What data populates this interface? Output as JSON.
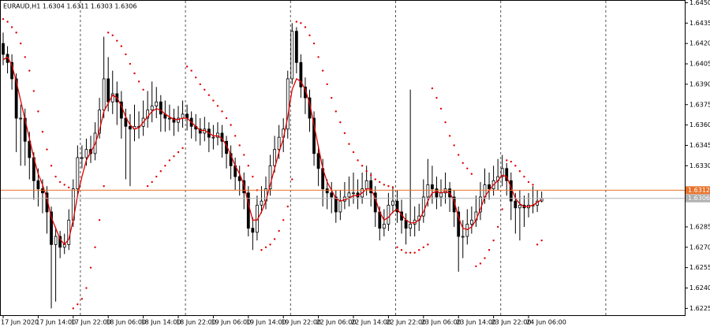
{
  "chart_data": {
    "type": "candlestick",
    "title": "EURAUD,H1  1.6304 1.6311 1.6303 1.6306",
    "ylim": [
      1.622,
      1.6452
    ],
    "yticks": [
      {
        "value": 1.645,
        "label": "1.6450"
      },
      {
        "value": 1.6435,
        "label": "1.6435"
      },
      {
        "value": 1.642,
        "label": "1.6420"
      },
      {
        "value": 1.6405,
        "label": "1.6405"
      },
      {
        "value": 1.639,
        "label": "1.6390"
      },
      {
        "value": 1.6375,
        "label": "1.6375"
      },
      {
        "value": 1.636,
        "label": "1.6360"
      },
      {
        "value": 1.6345,
        "label": "1.6345"
      },
      {
        "value": 1.633,
        "label": "1.6330"
      },
      {
        "value": 1.6285,
        "label": "1.6285"
      },
      {
        "value": 1.627,
        "label": "1.6270"
      },
      {
        "value": 1.6255,
        "label": "1.6255"
      },
      {
        "value": 1.624,
        "label": "1.6240"
      },
      {
        "value": 1.6225,
        "label": "1.6225"
      }
    ],
    "hlines": [
      {
        "value": 1.6312,
        "color": "#e8722a"
      },
      {
        "value": 1.6306,
        "color": "#b0b0b0"
      }
    ],
    "up_color": "#ffffff",
    "down_color": "#000000",
    "ma_color": "#e00000",
    "sar_color": "#e00000",
    "categories": [
      "17 Jun 2020",
      null,
      null,
      null,
      null,
      null,
      null,
      null,
      "17 Jun 14:00",
      null,
      null,
      null,
      null,
      null,
      null,
      null,
      "17 Jun 22:00",
      null,
      null,
      null,
      null,
      null,
      null,
      null,
      "18 Jun 06:00",
      null,
      null,
      null,
      null,
      null,
      null,
      null,
      "18 Jun 14:00",
      null,
      null,
      null,
      null,
      null,
      null,
      null,
      "18 Jun 22:00",
      null,
      null,
      null,
      null,
      null,
      null,
      null,
      "19 Jun 06:00",
      null,
      null,
      null,
      null,
      null,
      null,
      null,
      "19 Jun 14:00",
      null,
      null,
      null,
      null,
      null,
      null,
      null,
      "19 Jun 22:00",
      null,
      null,
      null,
      null,
      null,
      null,
      null,
      "22 Jun 06:00",
      null,
      null,
      null,
      null,
      null,
      null,
      null,
      "22 Jun 14:00",
      null,
      null,
      null,
      null,
      null,
      null,
      null,
      "22 Jun 22:00",
      null,
      null,
      null,
      null,
      null,
      null,
      null,
      "23 Jun 06:00",
      null,
      null,
      null,
      null,
      null,
      null,
      null,
      "23 Jun 14:00",
      null,
      null,
      null,
      null,
      null,
      null,
      null,
      "23 Jun 22:00",
      null,
      null,
      null,
      null,
      null,
      null,
      null,
      "24 Jun 06:00",
      null,
      null,
      null
    ],
    "candles": {
      "open": [
        1.642,
        1.6412,
        1.6406,
        1.6394,
        1.6365,
        1.6365,
        1.6348,
        1.6336,
        1.6319,
        1.6313,
        1.631,
        1.6296,
        1.6272,
        1.6278,
        1.627,
        1.6272,
        1.629,
        1.6313,
        1.6336,
        1.6336,
        1.6342,
        1.6339,
        1.6354,
        1.6371,
        1.6394,
        1.6377,
        1.6383,
        1.6377,
        1.6365,
        1.6359,
        1.6357,
        1.6359,
        1.6359,
        1.6365,
        1.6371,
        1.6374,
        1.6377,
        1.6368,
        1.6365,
        1.6365,
        1.6362,
        1.6365,
        1.6368,
        1.6365,
        1.6359,
        1.6357,
        1.6354,
        1.6357,
        1.6351,
        1.6351,
        1.6354,
        1.6348,
        1.6339,
        1.633,
        1.6322,
        1.6319,
        1.631,
        1.6284,
        1.6281,
        1.6301,
        1.6304,
        1.6313,
        1.633,
        1.6342,
        1.6351,
        1.6357,
        1.6394,
        1.6429,
        1.6406,
        1.6388,
        1.638,
        1.6365,
        1.6339,
        1.6328,
        1.6313,
        1.631,
        1.6307,
        1.6296,
        1.6304,
        1.6307,
        1.631,
        1.631,
        1.6307,
        1.6313,
        1.6319,
        1.631,
        1.6296,
        1.6284,
        1.6287,
        1.6301,
        1.6304,
        1.6296,
        1.629,
        1.6284,
        1.6287,
        1.629,
        1.6293,
        1.6307,
        1.6316,
        1.6313,
        1.6307,
        1.631,
        1.6313,
        1.6307,
        1.6296,
        1.6278,
        1.6278,
        1.6287,
        1.629,
        1.6296,
        1.6307,
        1.6316,
        1.6313,
        1.6319,
        1.6322,
        1.6328,
        1.6319,
        1.6304,
        1.6299,
        1.6301,
        1.6299,
        1.6301,
        1.6301,
        1.6304
      ],
      "high": [
        1.6428,
        1.6418,
        1.6412,
        1.6398,
        1.6375,
        1.6372,
        1.6355,
        1.634,
        1.6328,
        1.632,
        1.6315,
        1.63,
        1.6285,
        1.6282,
        1.628,
        1.6298,
        1.632,
        1.6345,
        1.6345,
        1.635,
        1.6352,
        1.6362,
        1.638,
        1.6425,
        1.641,
        1.64,
        1.6392,
        1.6385,
        1.6372,
        1.6368,
        1.6375,
        1.637,
        1.6378,
        1.6385,
        1.6392,
        1.6388,
        1.6382,
        1.6378,
        1.6375,
        1.6372,
        1.6374,
        1.6378,
        1.6375,
        1.637,
        1.6368,
        1.6365,
        1.6366,
        1.6362,
        1.636,
        1.6362,
        1.636,
        1.6352,
        1.6345,
        1.6336,
        1.633,
        1.6325,
        1.6315,
        1.6292,
        1.6308,
        1.6315,
        1.6322,
        1.6338,
        1.6352,
        1.636,
        1.6365,
        1.64,
        1.6435,
        1.6432,
        1.6412,
        1.6395,
        1.6386,
        1.637,
        1.6345,
        1.6335,
        1.632,
        1.6318,
        1.6312,
        1.6312,
        1.6318,
        1.6322,
        1.6325,
        1.632,
        1.6325,
        1.633,
        1.6325,
        1.6315,
        1.63,
        1.6298,
        1.631,
        1.6315,
        1.6312,
        1.6305,
        1.6295,
        1.6386,
        1.63,
        1.6302,
        1.632,
        1.6335,
        1.633,
        1.6322,
        1.632,
        1.6325,
        1.6318,
        1.6312,
        1.63,
        1.629,
        1.6298,
        1.63,
        1.6308,
        1.6318,
        1.6328,
        1.6325,
        1.633,
        1.6335,
        1.6338,
        1.6332,
        1.6325,
        1.631,
        1.6312,
        1.6308,
        1.631,
        1.6315,
        1.6312,
        1.6311
      ],
      "low": [
        1.6404,
        1.6398,
        1.6386,
        1.634,
        1.633,
        1.633,
        1.632,
        1.6305,
        1.63,
        1.6295,
        1.628,
        1.6225,
        1.623,
        1.6262,
        1.6265,
        1.6268,
        1.6285,
        1.6308,
        1.6328,
        1.633,
        1.6332,
        1.6334,
        1.635,
        1.6365,
        1.637,
        1.6368,
        1.636,
        1.635,
        1.632,
        1.6315,
        1.6348,
        1.635,
        1.6352,
        1.6358,
        1.6362,
        1.6365,
        1.6355,
        1.6355,
        1.6356,
        1.6352,
        1.6355,
        1.6358,
        1.6356,
        1.635,
        1.6348,
        1.6345,
        1.6348,
        1.634,
        1.6342,
        1.6345,
        1.6336,
        1.6328,
        1.632,
        1.6312,
        1.6308,
        1.6298,
        1.6278,
        1.6268,
        1.6275,
        1.6295,
        1.6298,
        1.6308,
        1.6325,
        1.6335,
        1.634,
        1.635,
        1.639,
        1.6398,
        1.638,
        1.6368,
        1.6355,
        1.633,
        1.6315,
        1.63,
        1.6298,
        1.6295,
        1.6288,
        1.629,
        1.6298,
        1.63,
        1.6302,
        1.6298,
        1.6302,
        1.6308,
        1.63,
        1.6285,
        1.6275,
        1.6278,
        1.6282,
        1.6295,
        1.6288,
        1.628,
        1.6272,
        1.6278,
        1.6278,
        1.6282,
        1.6288,
        1.63,
        1.6302,
        1.6298,
        1.63,
        1.6302,
        1.6296,
        1.6285,
        1.6252,
        1.6262,
        1.6272,
        1.628,
        1.6285,
        1.629,
        1.6302,
        1.6305,
        1.6308,
        1.6312,
        1.6315,
        1.6308,
        1.629,
        1.628,
        1.6275,
        1.6285,
        1.6292,
        1.6295,
        1.6296,
        1.6303
      ],
      "close": [
        1.6412,
        1.6406,
        1.6394,
        1.6365,
        1.6365,
        1.6348,
        1.6336,
        1.6319,
        1.6313,
        1.631,
        1.6296,
        1.6272,
        1.6278,
        1.627,
        1.6272,
        1.629,
        1.6313,
        1.6336,
        1.6336,
        1.6342,
        1.6339,
        1.6354,
        1.6371,
        1.6394,
        1.6377,
        1.6383,
        1.6377,
        1.6365,
        1.6359,
        1.6357,
        1.6359,
        1.6359,
        1.6365,
        1.6371,
        1.6374,
        1.6377,
        1.6368,
        1.6365,
        1.6365,
        1.6362,
        1.6365,
        1.6368,
        1.6365,
        1.6359,
        1.6357,
        1.6354,
        1.6357,
        1.6351,
        1.6351,
        1.6354,
        1.6348,
        1.6339,
        1.633,
        1.6322,
        1.6319,
        1.631,
        1.6284,
        1.6281,
        1.6301,
        1.6304,
        1.6313,
        1.633,
        1.6342,
        1.6351,
        1.6357,
        1.6394,
        1.6429,
        1.6406,
        1.6388,
        1.638,
        1.6365,
        1.6339,
        1.6328,
        1.6313,
        1.631,
        1.6307,
        1.6296,
        1.6304,
        1.6307,
        1.631,
        1.631,
        1.6307,
        1.6313,
        1.6319,
        1.631,
        1.6296,
        1.6284,
        1.6287,
        1.6301,
        1.6304,
        1.6296,
        1.629,
        1.6284,
        1.6287,
        1.629,
        1.6293,
        1.6307,
        1.6316,
        1.6313,
        1.6307,
        1.631,
        1.6313,
        1.6307,
        1.6296,
        1.6278,
        1.6278,
        1.6287,
        1.629,
        1.6296,
        1.6307,
        1.6316,
        1.6313,
        1.6319,
        1.6322,
        1.6328,
        1.6319,
        1.6304,
        1.6299,
        1.6301,
        1.6299,
        1.6301,
        1.6301,
        1.6304,
        1.6306
      ]
    },
    "ma": [
      1.6408,
      1.641,
      1.6404,
      1.6392,
      1.6378,
      1.6364,
      1.635,
      1.6336,
      1.6324,
      1.6316,
      1.6306,
      1.6292,
      1.6284,
      1.6276,
      1.6272,
      1.6276,
      1.629,
      1.6308,
      1.6322,
      1.6334,
      1.634,
      1.6346,
      1.6356,
      1.637,
      1.6376,
      1.6382,
      1.638,
      1.6374,
      1.6366,
      1.636,
      1.6357,
      1.6358,
      1.6362,
      1.6366,
      1.637,
      1.6372,
      1.6371,
      1.6368,
      1.6366,
      1.6364,
      1.6364,
      1.6365,
      1.6365,
      1.6362,
      1.6359,
      1.6356,
      1.6356,
      1.6354,
      1.6352,
      1.6352,
      1.635,
      1.6345,
      1.6338,
      1.633,
      1.6324,
      1.6316,
      1.6302,
      1.629,
      1.629,
      1.6296,
      1.6304,
      1.6316,
      1.6328,
      1.634,
      1.635,
      1.6366,
      1.6386,
      1.6394,
      1.6392,
      1.6386,
      1.6376,
      1.636,
      1.6344,
      1.6328,
      1.6318,
      1.6312,
      1.6306,
      1.6304,
      1.6305,
      1.6306,
      1.6308,
      1.6308,
      1.631,
      1.6313,
      1.6313,
      1.6306,
      1.6296,
      1.629,
      1.6292,
      1.6296,
      1.6298,
      1.6294,
      1.629,
      1.6288,
      1.6288,
      1.629,
      1.6296,
      1.6304,
      1.631,
      1.6311,
      1.631,
      1.6311,
      1.631,
      1.6304,
      1.6292,
      1.6284,
      1.6283,
      1.6285,
      1.629,
      1.6298,
      1.6307,
      1.6312,
      1.6316,
      1.6319,
      1.6323,
      1.6322,
      1.6314,
      1.6306,
      1.6302,
      1.63,
      1.63,
      1.6301,
      1.6303,
      1.6305
    ],
    "sar": [
      1.6438,
      1.6436,
      1.6432,
      1.6428,
      1.642,
      1.641,
      1.64,
      1.6385,
      1.637,
      1.6355,
      1.6342,
      1.633,
      1.6322,
      1.6318,
      1.6316,
      1.6314,
      1.6225,
      1.6228,
      1.6232,
      1.624,
      1.6255,
      1.627,
      1.629,
      1.6315,
      1.6428,
      1.6426,
      1.6422,
      1.6418,
      1.6412,
      1.6405,
      1.6398,
      1.6392,
      1.6386,
      1.6315,
      1.6318,
      1.6322,
      1.6326,
      1.633,
      1.6334,
      1.6337,
      1.634,
      1.6343,
      1.6403,
      1.64,
      1.6395,
      1.639,
      1.6386,
      1.6382,
      1.6378,
      1.6374,
      1.637,
      1.6365,
      1.636,
      1.6352,
      1.6345,
      1.6338,
      1.633,
      1.6322,
      1.6312,
      1.6268,
      1.627,
      1.6272,
      1.6276,
      1.6282,
      1.629,
      1.63,
      1.632,
      1.6436,
      1.6435,
      1.6432,
      1.6426,
      1.642,
      1.641,
      1.64,
      1.639,
      1.638,
      1.637,
      1.6362,
      1.6354,
      1.6346,
      1.634,
      1.6334,
      1.633,
      1.6326,
      1.6323,
      1.632,
      1.6318,
      1.6316,
      1.6315,
      1.6314,
      1.627,
      1.6268,
      1.6266,
      1.6266,
      1.6266,
      1.6268,
      1.627,
      1.6272,
      1.6387,
      1.638,
      1.6372,
      1.6362,
      1.6352,
      1.6345,
      1.6338,
      1.6332,
      1.6328,
      1.6324,
      1.6256,
      1.6258,
      1.6262,
      1.6268,
      1.6275,
      1.6285,
      1.6298,
      1.6334,
      1.6333,
      1.633,
      1.6326,
      1.6322,
      1.6318,
      1.6316,
      1.6272,
      1.6275
    ]
  }
}
